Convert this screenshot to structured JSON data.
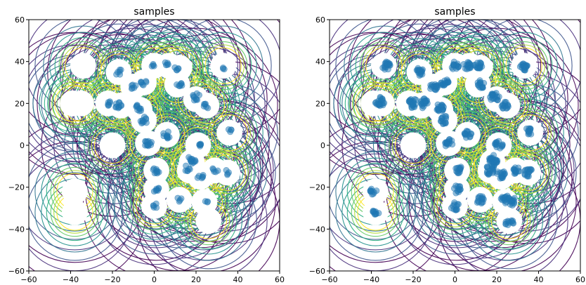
{
  "chart_data": [
    {
      "type": "scatter",
      "title": "samples",
      "xlabel": "",
      "ylabel": "",
      "xlim": [
        -60,
        60
      ],
      "ylim": [
        -60,
        60
      ],
      "xticks": [
        -60,
        -40,
        -20,
        0,
        20,
        40,
        60
      ],
      "yticks": [
        -60,
        -40,
        -20,
        0,
        20,
        40,
        60
      ],
      "background": "contour (viridis) of density around cluster centers",
      "contour_centers": [
        [
          -34,
          38
        ],
        [
          -35,
          20
        ],
        [
          -39,
          20
        ],
        [
          -38,
          -22
        ],
        [
          -38,
          -32
        ],
        [
          -20,
          0
        ],
        [
          33,
          38
        ],
        [
          26,
          -36
        ],
        [
          -17,
          35
        ],
        [
          -10,
          28
        ],
        [
          -5,
          30
        ],
        [
          0,
          38
        ],
        [
          7,
          38
        ],
        [
          12,
          37
        ],
        [
          -22,
          20
        ],
        [
          -16,
          19
        ],
        [
          -7,
          17
        ],
        [
          -5,
          12
        ],
        [
          -3,
          1
        ],
        [
          6,
          5
        ],
        [
          11,
          29
        ],
        [
          20,
          22
        ],
        [
          25,
          19
        ],
        [
          36,
          6
        ],
        [
          1,
          -12
        ],
        [
          1,
          -21
        ],
        [
          0,
          -29
        ],
        [
          12,
          -26
        ],
        [
          21,
          0
        ],
        [
          18,
          -8
        ],
        [
          17,
          -12
        ],
        [
          22,
          -15
        ],
        [
          29,
          -12
        ],
        [
          35,
          -13
        ],
        [
          24,
          -27
        ]
      ],
      "series": [
        {
          "color": "#1f77b4",
          "clusters": [
            {
              "cx": -17,
              "cy": 35,
              "n": 6,
              "r": 1.6
            },
            {
              "cx": -10,
              "cy": 28,
              "n": 6,
              "r": 1.4
            },
            {
              "cx": -5,
              "cy": 30,
              "n": 7,
              "r": 1.4
            },
            {
              "cx": -1,
              "cy": 38,
              "n": 4,
              "r": 1.2
            },
            {
              "cx": 6,
              "cy": 39,
              "n": 5,
              "r": 1.2
            },
            {
              "cx": 11,
              "cy": 37,
              "n": 5,
              "r": 1.2
            },
            {
              "cx": -22,
              "cy": 20,
              "n": 6,
              "r": 1.6
            },
            {
              "cx": -17,
              "cy": 19,
              "n": 10,
              "r": 1.8
            },
            {
              "cx": -7,
              "cy": 18,
              "n": 10,
              "r": 1.8
            },
            {
              "cx": -5,
              "cy": 12,
              "n": 10,
              "r": 1.8
            },
            {
              "cx": -3,
              "cy": 1,
              "n": 12,
              "r": 1.8
            },
            {
              "cx": 6,
              "cy": 5,
              "n": 10,
              "r": 1.8
            },
            {
              "cx": 12,
              "cy": 29,
              "n": 7,
              "r": 1.5
            },
            {
              "cx": 20,
              "cy": 23,
              "n": 9,
              "r": 1.8
            },
            {
              "cx": 25,
              "cy": 19,
              "n": 6,
              "r": 1.4
            },
            {
              "cx": 36,
              "cy": 7,
              "n": 4,
              "r": 1.2
            },
            {
              "cx": 33,
              "cy": 37,
              "n": 3,
              "r": 1.0
            },
            {
              "cx": 1,
              "cy": -12,
              "n": 9,
              "r": 1.6
            },
            {
              "cx": 1,
              "cy": -21,
              "n": 7,
              "r": 1.5
            },
            {
              "cx": 0,
              "cy": -29,
              "n": 5,
              "r": 1.5
            },
            {
              "cx": 12,
              "cy": -26,
              "n": 4,
              "r": 1.2
            },
            {
              "cx": 21,
              "cy": 0,
              "n": 6,
              "r": 1.5
            },
            {
              "cx": 18,
              "cy": -7,
              "n": 12,
              "r": 2.0
            },
            {
              "cx": 16,
              "cy": -11,
              "n": 6,
              "r": 1.6
            },
            {
              "cx": 22,
              "cy": -15,
              "n": 6,
              "r": 1.6
            },
            {
              "cx": 29,
              "cy": -12,
              "n": 5,
              "r": 1.5
            },
            {
              "cx": 35,
              "cy": -13,
              "n": 4,
              "r": 1.3
            },
            {
              "cx": 24,
              "cy": -27,
              "n": 3,
              "r": 2.0
            }
          ]
        }
      ]
    },
    {
      "type": "scatter",
      "title": "samples",
      "xlabel": "",
      "ylabel": "",
      "xlim": [
        -60,
        60
      ],
      "ylim": [
        -60,
        60
      ],
      "xticks": [
        -60,
        -40,
        -20,
        0,
        20,
        40,
        60
      ],
      "yticks": [
        -60,
        -40,
        -20,
        0,
        20,
        40,
        60
      ],
      "background": "contour (viridis) of density around cluster centers",
      "contour_centers": [
        [
          -34,
          38
        ],
        [
          -35,
          20
        ],
        [
          -39,
          20
        ],
        [
          -38,
          -22
        ],
        [
          -38,
          -32
        ],
        [
          -20,
          0
        ],
        [
          33,
          38
        ],
        [
          26,
          -36
        ],
        [
          -17,
          35
        ],
        [
          -10,
          28
        ],
        [
          -5,
          30
        ],
        [
          0,
          38
        ],
        [
          7,
          38
        ],
        [
          12,
          37
        ],
        [
          -22,
          20
        ],
        [
          -16,
          19
        ],
        [
          -7,
          17
        ],
        [
          -5,
          12
        ],
        [
          -3,
          1
        ],
        [
          6,
          5
        ],
        [
          11,
          29
        ],
        [
          20,
          22
        ],
        [
          25,
          19
        ],
        [
          36,
          6
        ],
        [
          1,
          -12
        ],
        [
          1,
          -21
        ],
        [
          0,
          -29
        ],
        [
          12,
          -26
        ],
        [
          21,
          0
        ],
        [
          18,
          -8
        ],
        [
          17,
          -12
        ],
        [
          22,
          -15
        ],
        [
          29,
          -12
        ],
        [
          35,
          -13
        ],
        [
          24,
          -27
        ]
      ],
      "series": [
        {
          "color": "#1f77b4",
          "clusters": [
            {
              "cx": -33,
              "cy": 38,
              "n": 18,
              "r": 2.0
            },
            {
              "cx": -17,
              "cy": 35,
              "n": 18,
              "r": 2.0
            },
            {
              "cx": -10,
              "cy": 28,
              "n": 16,
              "r": 2.0
            },
            {
              "cx": -5,
              "cy": 30,
              "n": 16,
              "r": 2.0
            },
            {
              "cx": 0,
              "cy": 38,
              "n": 14,
              "r": 2.0
            },
            {
              "cx": 6,
              "cy": 38,
              "n": 16,
              "r": 2.0
            },
            {
              "cx": 11,
              "cy": 38,
              "n": 16,
              "r": 2.0
            },
            {
              "cx": 33,
              "cy": 37,
              "n": 18,
              "r": 2.0
            },
            {
              "cx": -36,
              "cy": 21,
              "n": 22,
              "r": 2.4
            },
            {
              "cx": -20,
              "cy": 20,
              "n": 20,
              "r": 2.3
            },
            {
              "cx": -15,
              "cy": 20,
              "n": 20,
              "r": 2.3
            },
            {
              "cx": -7,
              "cy": 18,
              "n": 18,
              "r": 2.0
            },
            {
              "cx": -5,
              "cy": 12,
              "n": 14,
              "r": 2.0
            },
            {
              "cx": -3,
              "cy": 1,
              "n": 14,
              "r": 2.0
            },
            {
              "cx": 6,
              "cy": 5,
              "n": 14,
              "r": 2.0
            },
            {
              "cx": 12,
              "cy": 29,
              "n": 14,
              "r": 2.0
            },
            {
              "cx": 19,
              "cy": 23,
              "n": 18,
              "r": 2.2
            },
            {
              "cx": 24,
              "cy": 19,
              "n": 14,
              "r": 2.0
            },
            {
              "cx": 36,
              "cy": 7,
              "n": 12,
              "r": 2.0
            },
            {
              "cx": 2,
              "cy": -12,
              "n": 14,
              "r": 2.0
            },
            {
              "cx": 1,
              "cy": -21,
              "n": 12,
              "r": 2.0
            },
            {
              "cx": 0,
              "cy": -29,
              "n": 12,
              "r": 2.0
            },
            {
              "cx": 12,
              "cy": -26,
              "n": 14,
              "r": 2.0
            },
            {
              "cx": 21,
              "cy": 0,
              "n": 14,
              "r": 2.0
            },
            {
              "cx": 18,
              "cy": -7,
              "n": 24,
              "r": 2.8
            },
            {
              "cx": 17,
              "cy": -12,
              "n": 18,
              "r": 2.4
            },
            {
              "cx": 22,
              "cy": -14,
              "n": 16,
              "r": 2.2
            },
            {
              "cx": 29,
              "cy": -12,
              "n": 14,
              "r": 2.0
            },
            {
              "cx": 35,
              "cy": -13,
              "n": 16,
              "r": 2.2
            },
            {
              "cx": 24,
              "cy": -26,
              "n": 16,
              "r": 2.2
            },
            {
              "cx": 28,
              "cy": -27,
              "n": 14,
              "r": 2.0
            },
            {
              "cx": 26,
              "cy": -37,
              "n": 12,
              "r": 2.0
            },
            {
              "cx": -39,
              "cy": -22,
              "n": 10,
              "r": 1.6
            },
            {
              "cx": -38,
              "cy": -32,
              "n": 10,
              "r": 1.6
            }
          ]
        }
      ]
    }
  ]
}
